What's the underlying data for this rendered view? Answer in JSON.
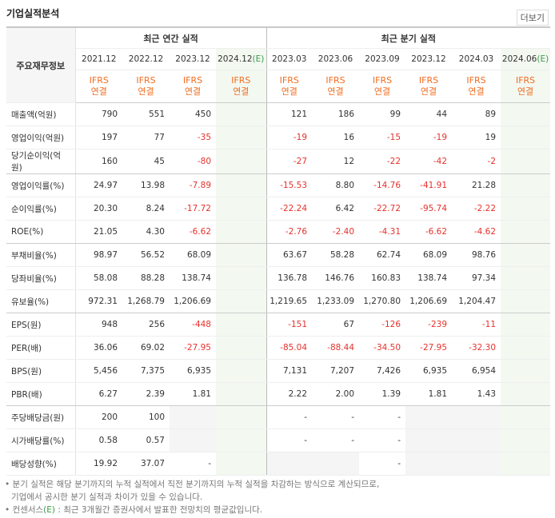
{
  "header": {
    "title": "기업실적분석",
    "more": "더보기"
  },
  "table": {
    "corner": "주요재무정보",
    "groups": [
      "최근 연간 실적",
      "최근 분기 실적"
    ],
    "periods": [
      {
        "date": "2021.12"
      },
      {
        "date": "2022.12"
      },
      {
        "date": "2023.12"
      },
      {
        "date": "2024.12",
        "mark": "(E)"
      },
      {
        "date": "2023.03"
      },
      {
        "date": "2023.06"
      },
      {
        "date": "2023.09"
      },
      {
        "date": "2023.12"
      },
      {
        "date": "2024.03"
      },
      {
        "date": "2024.06",
        "mark": "(E)"
      }
    ],
    "standards": [
      [
        "IFRS",
        "연결"
      ],
      [
        "IFRS",
        "연결"
      ],
      [
        "IFRS",
        "연결"
      ],
      [
        "IFRS",
        "연결"
      ],
      [
        "IFRS",
        "연결"
      ],
      [
        "IFRS",
        "연결"
      ],
      [
        "IFRS",
        "연결"
      ],
      [
        "IFRS",
        "연결"
      ],
      [
        "IFRS",
        "연결"
      ],
      [
        "IFRS",
        "연결"
      ]
    ],
    "rows": [
      {
        "label": "매출액(억원)",
        "cells": [
          "790",
          "551",
          "450",
          null,
          "121",
          "186",
          "99",
          "44",
          "89",
          null
        ]
      },
      {
        "label": "영업이익(억원)",
        "cells": [
          "197",
          "77",
          "-35",
          null,
          "-19",
          "16",
          "-15",
          "-19",
          "19",
          null
        ]
      },
      {
        "label": "당기순이익(억원)",
        "cells": [
          "160",
          "45",
          "-80",
          null,
          "-27",
          "12",
          "-22",
          "-42",
          "-2",
          null
        ]
      },
      {
        "label": "영업이익률(%)",
        "cells": [
          "24.97",
          "13.98",
          "-7.89",
          null,
          "-15.53",
          "8.80",
          "-14.76",
          "-41.91",
          "21.28",
          null
        ]
      },
      {
        "label": "순이익률(%)",
        "cells": [
          "20.30",
          "8.24",
          "-17.72",
          null,
          "-22.24",
          "6.42",
          "-22.72",
          "-95.74",
          "-2.22",
          null
        ]
      },
      {
        "label": "ROE(%)",
        "cells": [
          "21.05",
          "4.30",
          "-6.62",
          null,
          "-2.76",
          "-2.40",
          "-4.31",
          "-6.62",
          "-4.62",
          null
        ]
      },
      {
        "label": "부채비율(%)",
        "cells": [
          "98.97",
          "56.52",
          "68.09",
          null,
          "63.67",
          "58.28",
          "62.74",
          "68.09",
          "98.76",
          null
        ]
      },
      {
        "label": "당좌비율(%)",
        "cells": [
          "58.08",
          "88.28",
          "138.74",
          null,
          "136.78",
          "146.76",
          "160.83",
          "138.74",
          "97.34",
          null
        ]
      },
      {
        "label": "유보율(%)",
        "cells": [
          "972.31",
          "1,268.79",
          "1,206.69",
          null,
          "1,219.65",
          "1,233.09",
          "1,270.80",
          "1,206.69",
          "1,204.47",
          null
        ]
      },
      {
        "label": "EPS(원)",
        "cells": [
          "948",
          "256",
          "-448",
          null,
          "-151",
          "67",
          "-126",
          "-239",
          "-11",
          null
        ]
      },
      {
        "label": "PER(배)",
        "cells": [
          "36.06",
          "69.02",
          "-27.95",
          null,
          "-85.04",
          "-88.44",
          "-34.50",
          "-27.95",
          "-32.30",
          null
        ]
      },
      {
        "label": "BPS(원)",
        "cells": [
          "5,456",
          "7,375",
          "6,935",
          null,
          "7,131",
          "7,207",
          "7,426",
          "6,935",
          "6,954",
          null
        ]
      },
      {
        "label": "PBR(배)",
        "cells": [
          "6.27",
          "2.39",
          "1.81",
          null,
          "2.22",
          "2.00",
          "1.39",
          "1.81",
          "1.43",
          null
        ]
      },
      {
        "label": "주당배당금(원)",
        "cells": [
          "200",
          "100",
          null,
          null,
          "-",
          "-",
          "-",
          null,
          null,
          null
        ]
      },
      {
        "label": "시가배당률(%)",
        "cells": [
          "0.58",
          "0.57",
          null,
          null,
          "-",
          "-",
          "-",
          null,
          null,
          null
        ]
      },
      {
        "label": "배당성향(%)",
        "cells": [
          "19.92",
          "37.07",
          "-",
          null,
          null,
          null,
          "-",
          null,
          null,
          null
        ]
      }
    ]
  },
  "notes": [
    {
      "lines": [
        "분기 실적은 해당 분기까지의 누적 실적에서 직전 분기까지의 누적 실적을 차감하는 방식으로 계산되므로,",
        "기업에서 공시한 분기 실적과 차이가 있을 수 있습니다."
      ]
    },
    {
      "prefix": "컨센서스",
      "mark": "(E)",
      "text": " : 최근 3개월간 증권사에서 발표한 전망치의 평균값입니다."
    }
  ]
}
